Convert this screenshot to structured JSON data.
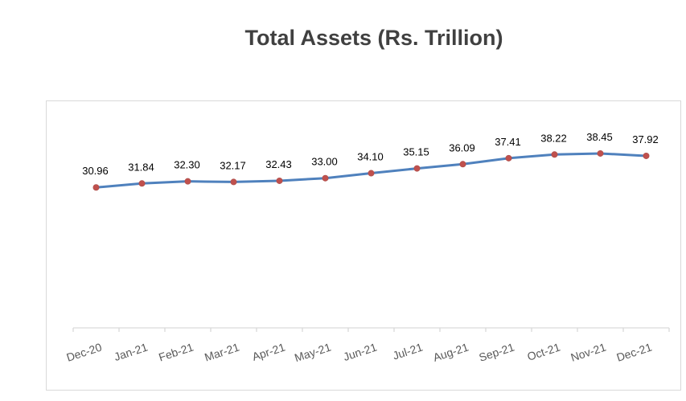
{
  "chart_data": {
    "type": "line",
    "title": "Total Assets (Rs. Trillion)",
    "xlabel": "",
    "ylabel": "",
    "categories": [
      "Dec-20",
      "Jan-21",
      "Feb-21",
      "Mar-21",
      "Apr-21",
      "May-21",
      "Jun-21",
      "Jul-21",
      "Aug-21",
      "Sep-21",
      "Oct-21",
      "Nov-21",
      "Dec-21"
    ],
    "values": [
      30.96,
      31.84,
      32.3,
      32.17,
      32.43,
      33.0,
      34.1,
      35.15,
      36.09,
      37.41,
      38.22,
      38.45,
      37.92
    ],
    "data_labels": [
      "30.96",
      "31.84",
      "32.30",
      "32.17",
      "32.43",
      "33.00",
      "34.10",
      "35.15",
      "36.09",
      "37.41",
      "38.22",
      "38.45",
      "37.92"
    ],
    "ylim": [
      0,
      45
    ],
    "y_axis_visible": false,
    "grid": false,
    "legend": "none",
    "colors": {
      "line": "#4f81bd",
      "marker": "#c0504d",
      "border": "#d9d9d9",
      "axis": "#d9d9d9"
    }
  }
}
